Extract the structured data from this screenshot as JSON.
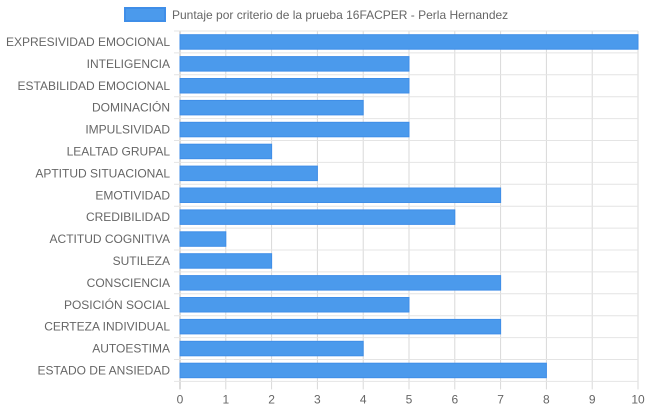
{
  "chart_data": {
    "type": "bar",
    "orientation": "horizontal",
    "legend_position": "top",
    "grid": true,
    "categories": [
      "EXPRESIVIDAD EMOCIONAL",
      "INTELIGENCIA",
      "ESTABILIDAD EMOCIONAL",
      "DOMINACIÓN",
      "IMPULSIVIDAD",
      "LEALTAD GRUPAL",
      "APTITUD SITUACIONAL",
      "EMOTIVIDAD",
      "CREDIBILIDAD",
      "ACTITUD COGNITIVA",
      "SUTILEZA",
      "CONSCIENCIA",
      "POSICIÓN SOCIAL",
      "CERTEZA INDIVIDUAL",
      "AUTOESTIMA",
      "ESTADO DE ANSIEDAD"
    ],
    "series": [
      {
        "name": "Puntaje por criterio de la prueba 16FACPER - Perla Hernandez",
        "color": "#4b9aec",
        "border_color": "#3f8ee8",
        "values": [
          10,
          5,
          5,
          4,
          5,
          2,
          3,
          7,
          6,
          1,
          2,
          7,
          5,
          7,
          4,
          8
        ]
      }
    ],
    "xlim": [
      0,
      10
    ],
    "xticks": [
      "0",
      "1",
      "2",
      "3",
      "4",
      "5",
      "6",
      "7",
      "8",
      "9",
      "10"
    ]
  }
}
